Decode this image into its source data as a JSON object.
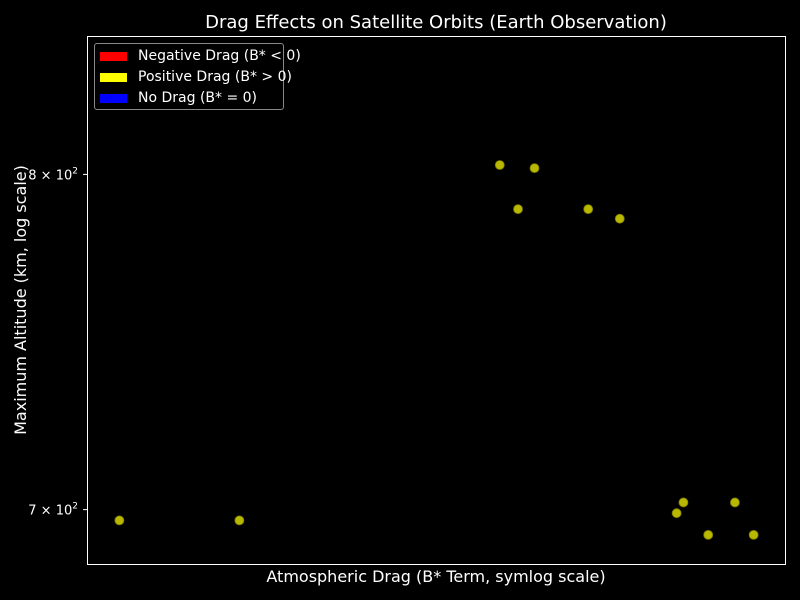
{
  "chart_data": {
    "type": "scatter",
    "title": "Drag Effects on Satellite Orbits (Earth Observation)",
    "xlabel": "Atmospheric Drag (B* Term, symlog scale)",
    "ylabel": "Maximum Altitude (km, log scale)",
    "yscale": "log",
    "xscale": "symlog",
    "ylim": [
      685,
      845
    ],
    "y_ticks": [
      {
        "value": 700,
        "label_base": "7 × 10",
        "label_exp": "2"
      },
      {
        "value": 800,
        "label_base": "8 × 10",
        "label_exp": "2"
      }
    ],
    "x_ticks": [],
    "grid": false,
    "legend": {
      "placement": "upper-left",
      "entries": [
        {
          "label": "Negative Drag (B* < 0)",
          "color": "#ff0000"
        },
        {
          "label": "Positive Drag (B* > 0)",
          "color": "#ffff00"
        },
        {
          "label": "No Drag (B* = 0)",
          "color": "#0000ff"
        }
      ]
    },
    "point_color": "#b8b800",
    "series": [
      {
        "points": [
          {
            "x": 0.0001,
            "y": 697
          },
          {
            "x": 0.0002,
            "y": 697
          },
          {
            "x": 0.0009,
            "y": 803
          },
          {
            "x": 0.001,
            "y": 789
          },
          {
            "x": 0.0011,
            "y": 802
          },
          {
            "x": 0.0015,
            "y": 789
          },
          {
            "x": 0.0018,
            "y": 786
          },
          {
            "x": 0.0025,
            "y": 699
          },
          {
            "x": 0.0026,
            "y": 702
          },
          {
            "x": 0.003,
            "y": 693
          },
          {
            "x": 0.0035,
            "y": 702
          },
          {
            "x": 0.0039,
            "y": 693
          }
        ]
      }
    ]
  }
}
